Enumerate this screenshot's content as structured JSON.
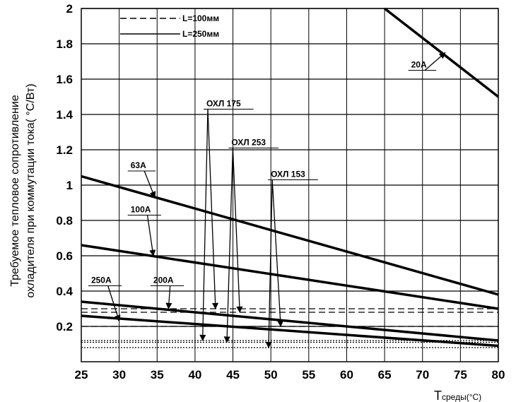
{
  "chart_data": {
    "type": "line",
    "xlabel": "T",
    "xlabel_sub": "среды(°С)",
    "ylabel_line1": "Требуемое тепловое сопротивление",
    "ylabel_line2": "охладителя при коммутации тока( °С/Вт)",
    "xlim": [
      25,
      80
    ],
    "ylim": [
      0,
      2
    ],
    "x_ticks": [
      "25",
      "30",
      "35",
      "40",
      "45",
      "50",
      "55",
      "60",
      "65",
      "70",
      "75",
      "80"
    ],
    "y_ticks": [
      "0.2",
      "0.4",
      "0.6",
      "0.8",
      "1",
      "1.2",
      "1.4",
      "1.6",
      "1.8",
      "2"
    ],
    "grid": true,
    "legend": [
      {
        "label": "L=100мм",
        "style": "dashed"
      },
      {
        "label": "L=250мм",
        "style": "solid"
      }
    ],
    "series": [
      {
        "name": "20A",
        "points": [
          [
            65,
            2.0
          ],
          [
            80,
            1.5
          ]
        ]
      },
      {
        "name": "63A",
        "points": [
          [
            25,
            1.05
          ],
          [
            80,
            0.38
          ]
        ]
      },
      {
        "name": "100A",
        "points": [
          [
            25,
            0.66
          ],
          [
            80,
            0.3
          ]
        ]
      },
      {
        "name": "200A",
        "points": [
          [
            25,
            0.34
          ],
          [
            80,
            0.12
          ]
        ]
      },
      {
        "name": "250A",
        "points": [
          [
            25,
            0.26
          ],
          [
            80,
            0.09
          ]
        ]
      }
    ],
    "cooler_levels": [
      {
        "name": "ОХЛ 175",
        "dashed": 0.3,
        "dotted": 0.12
      },
      {
        "name": "ОХЛ 253",
        "dashed": 0.28,
        "dotted": 0.11
      },
      {
        "name": "ОХЛ 153",
        "dashed": 0.2,
        "dotted": 0.08
      }
    ],
    "annotations": [
      {
        "label": "20A",
        "label_at": [
          68.5,
          1.65
        ],
        "target": [
          73,
          1.75
        ]
      },
      {
        "label": "63A",
        "label_at": [
          31.5,
          1.08
        ],
        "target": [
          34.7,
          0.93
        ]
      },
      {
        "label": "100A",
        "label_at": [
          31.5,
          0.83
        ],
        "target": [
          34.5,
          0.6
        ]
      },
      {
        "label": "250A",
        "label_at": [
          26.3,
          0.43
        ],
        "target": [
          30.0,
          0.23
        ]
      },
      {
        "label": "200A",
        "label_at": [
          34.5,
          0.43
        ],
        "target": [
          36.5,
          0.3
        ]
      },
      {
        "label": "ОХЛ 175",
        "label_at": [
          41.5,
          1.43
        ],
        "targets": [
          [
            42.7,
            0.3
          ],
          [
            41.0,
            0.12
          ]
        ]
      },
      {
        "label": "ОХЛ 253",
        "label_at": [
          44.8,
          1.21
        ],
        "targets": [
          [
            45.9,
            0.28
          ],
          [
            44.2,
            0.11
          ]
        ]
      },
      {
        "label": "ОХЛ 153",
        "label_at": [
          50.0,
          1.03
        ],
        "targets": [
          [
            51.3,
            0.2
          ],
          [
            49.7,
            0.08
          ]
        ]
      }
    ]
  }
}
